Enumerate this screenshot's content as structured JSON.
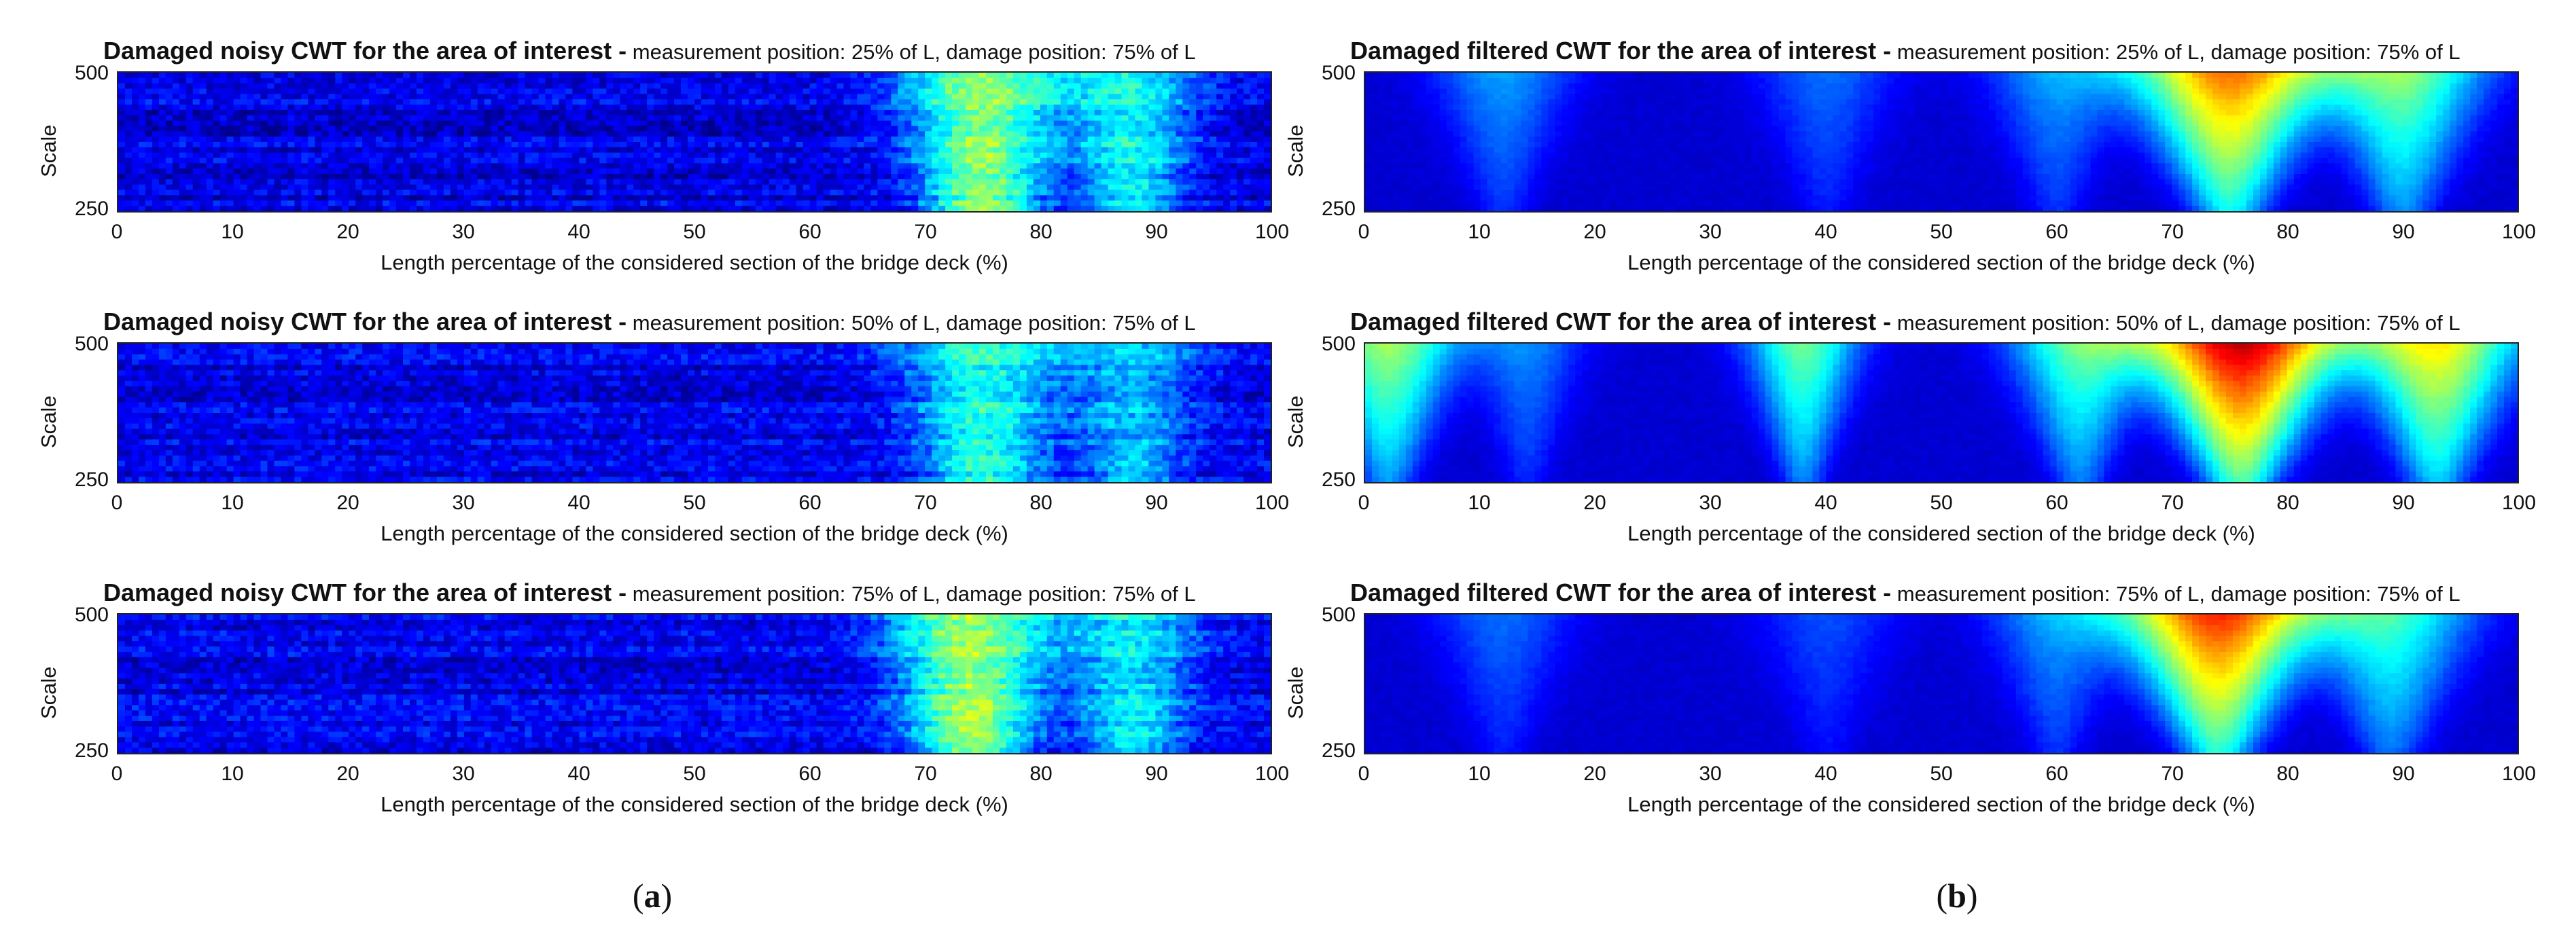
{
  "chart_data": [
    {
      "type": "heatmap",
      "panel_group": "a",
      "title_bold": "Damaged noisy CWT for the area of interest -",
      "title_rest": " measurement position: 25% of L, damage position: 75% of L",
      "xlabel": "Length percentage of the considered section of the bridge deck (%)",
      "ylabel": "Scale",
      "xlim": [
        0,
        100
      ],
      "ylim": [
        250,
        500
      ],
      "xticks": [
        "0",
        "10",
        "20",
        "30",
        "40",
        "50",
        "60",
        "70",
        "80",
        "90",
        "100"
      ],
      "yticks": [
        "500",
        "250"
      ],
      "colormap": "jet",
      "filtered": false,
      "bands": [
        {
          "center": 75,
          "width": 6,
          "peak": 0.42
        },
        {
          "center": 88,
          "width": 5,
          "peak": 0.28
        }
      ]
    },
    {
      "type": "heatmap",
      "panel_group": "a",
      "title_bold": "Damaged noisy CWT for the area of interest -",
      "title_rest": " measurement position: 50% of L, damage position: 75% of L",
      "xlabel": "Length percentage of the considered section of the bridge deck (%)",
      "ylabel": "Scale",
      "xlim": [
        0,
        100
      ],
      "ylim": [
        250,
        500
      ],
      "xticks": [
        "0",
        "10",
        "20",
        "30",
        "40",
        "50",
        "60",
        "70",
        "80",
        "90",
        "100"
      ],
      "yticks": [
        "500",
        "250"
      ],
      "colormap": "jet",
      "filtered": false,
      "bands": [
        {
          "center": 75,
          "width": 6,
          "peak": 0.3
        },
        {
          "center": 88,
          "width": 5,
          "peak": 0.2
        }
      ]
    },
    {
      "type": "heatmap",
      "panel_group": "a",
      "title_bold": "Damaged noisy CWT for the area of interest -",
      "title_rest": " measurement position: 75% of L, damage position: 75% of L",
      "xlabel": "Length percentage of the considered section of the bridge deck (%)",
      "ylabel": "Scale",
      "xlim": [
        0,
        100
      ],
      "ylim": [
        250,
        500
      ],
      "xticks": [
        "0",
        "10",
        "20",
        "30",
        "40",
        "50",
        "60",
        "70",
        "80",
        "90",
        "100"
      ],
      "yticks": [
        "500",
        "250"
      ],
      "colormap": "jet",
      "filtered": false,
      "bands": [
        {
          "center": 74,
          "width": 6,
          "peak": 0.42
        },
        {
          "center": 88,
          "width": 5,
          "peak": 0.25
        }
      ]
    },
    {
      "type": "heatmap",
      "panel_group": "b",
      "title_bold": "Damaged filtered CWT for the area of interest -",
      "title_rest": " measurement position: 25% of L, damage position: 75% of L",
      "xlabel": "Length percentage of the considered section of the bridge deck (%)",
      "ylabel": "Scale",
      "xlim": [
        0,
        100
      ],
      "ylim": [
        250,
        500
      ],
      "xticks": [
        "0",
        "10",
        "20",
        "30",
        "40",
        "50",
        "60",
        "70",
        "80",
        "90",
        "100"
      ],
      "yticks": [
        "500",
        "250"
      ],
      "colormap": "jet",
      "filtered": true,
      "bands": [
        {
          "center": 75,
          "width": 7,
          "peak": 0.68
        },
        {
          "center": 90,
          "width": 6,
          "peak": 0.42
        },
        {
          "center": 12,
          "width": 5,
          "peak": 0.2
        },
        {
          "center": 40,
          "width": 5,
          "peak": 0.15
        },
        {
          "center": 60,
          "width": 5,
          "peak": 0.2
        }
      ]
    },
    {
      "type": "heatmap",
      "panel_group": "b",
      "title_bold": "Damaged filtered CWT for the area of interest -",
      "title_rest": " measurement position: 50% of L, damage position: 75% of L",
      "xlabel": "Length percentage of the considered section of the bridge deck (%)",
      "ylabel": "Scale",
      "xlim": [
        0,
        100
      ],
      "ylim": [
        250,
        500
      ],
      "xticks": [
        "0",
        "10",
        "20",
        "30",
        "40",
        "50",
        "60",
        "70",
        "80",
        "90",
        "100"
      ],
      "yticks": [
        "500",
        "250"
      ],
      "colormap": "jet",
      "filtered": true,
      "bands": [
        {
          "center": 76,
          "width": 7,
          "peak": 0.85
        },
        {
          "center": 93,
          "width": 6,
          "peak": 0.55
        },
        {
          "center": 2,
          "width": 5,
          "peak": 0.45
        },
        {
          "center": 38,
          "width": 4,
          "peak": 0.4
        },
        {
          "center": 62,
          "width": 5,
          "peak": 0.38
        },
        {
          "center": 14,
          "width": 4,
          "peak": 0.18
        }
      ]
    },
    {
      "type": "heatmap",
      "panel_group": "b",
      "title_bold": "Damaged filtered CWT for the area of interest -",
      "title_rest": " measurement position: 75% of L, damage position: 75% of L",
      "xlabel": "Length percentage of the considered section of the bridge deck (%)",
      "ylabel": "Scale",
      "xlim": [
        0,
        100
      ],
      "ylim": [
        250,
        500
      ],
      "xticks": [
        "0",
        "10",
        "20",
        "30",
        "40",
        "50",
        "60",
        "70",
        "80",
        "90",
        "100"
      ],
      "yticks": [
        "500",
        "250"
      ],
      "colormap": "jet",
      "filtered": true,
      "bands": [
        {
          "center": 74,
          "width": 7,
          "peak": 0.75
        },
        {
          "center": 89,
          "width": 6,
          "peak": 0.35
        },
        {
          "center": 60,
          "width": 5,
          "peak": 0.2
        },
        {
          "center": 12,
          "width": 5,
          "peak": 0.15
        },
        {
          "center": 40,
          "width": 5,
          "peak": 0.12
        }
      ]
    }
  ],
  "captions": {
    "a": {
      "open": "(",
      "letter": "a",
      "close": ")"
    },
    "b": {
      "open": "(",
      "letter": "b",
      "close": ")"
    }
  }
}
